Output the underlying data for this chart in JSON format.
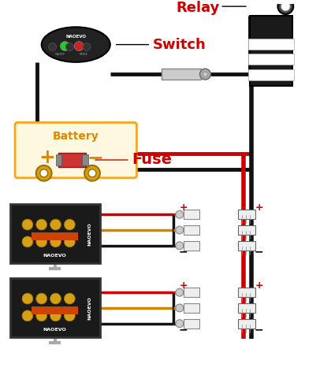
{
  "bg_color": "#ffffff",
  "switch_label": "Switch",
  "relay_label": "Relay",
  "battery_label": "Battery",
  "fuse_label": "Fuse",
  "wire_black": "#111111",
  "wire_red": "#cc0000",
  "wire_orange": "#cc8800",
  "label_red": "#cc0000",
  "label_orange": "#dd8800",
  "battery_box_color": "#f5a623",
  "battery_bg": "#fff8e1",
  "switch_bg": "#222222",
  "relay_bg": "#1a1a1a"
}
